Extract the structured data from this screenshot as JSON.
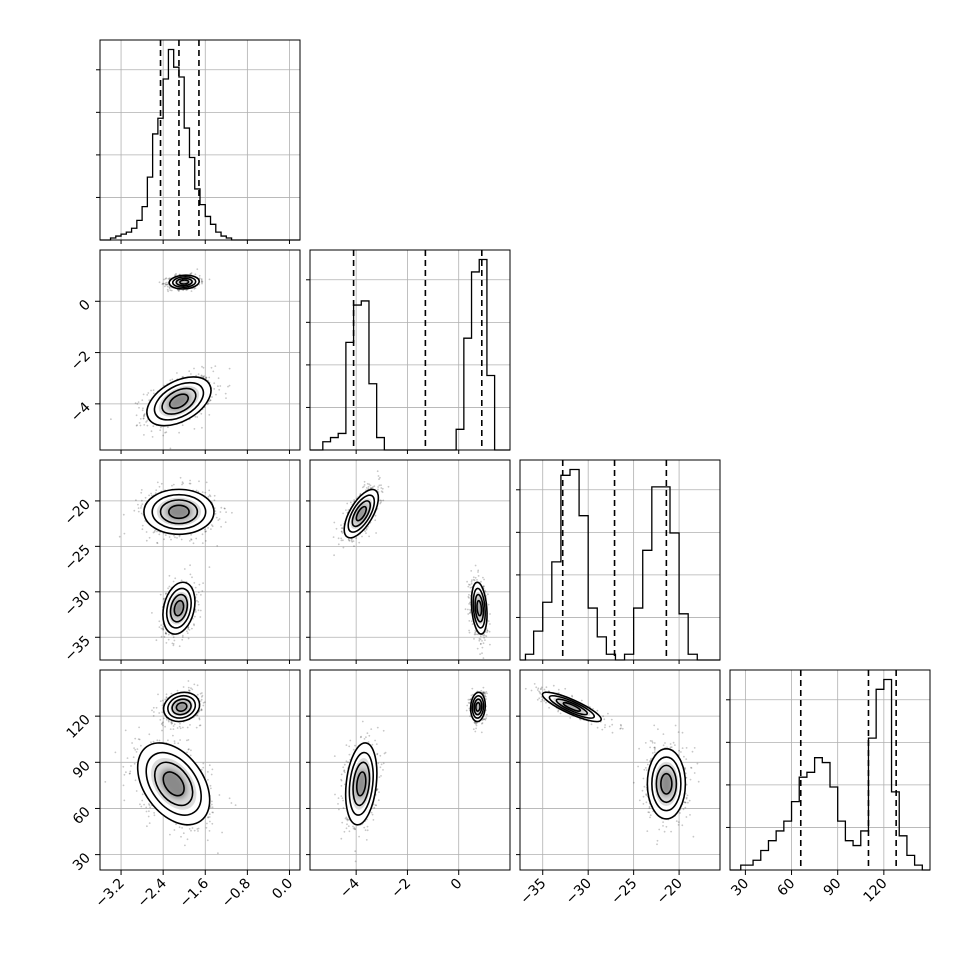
{
  "chart_data": {
    "type": "corner",
    "title": "",
    "grid": true,
    "parameters": [
      {
        "xlim": [
          -3.6,
          0.2
        ],
        "ticks": [
          -3.2,
          -2.4,
          -1.6,
          -0.8,
          0.0
        ],
        "tick_labels": [
          "−3.2",
          "−2.4",
          "−1.6",
          "−0.8",
          "0.0"
        ]
      },
      {
        "xlim": [
          -5.8,
          2.0
        ],
        "ticks": [
          -4,
          -2,
          0
        ],
        "tick_labels": [
          "−4",
          "−2",
          "0"
        ]
      },
      {
        "xlim": [
          -37.5,
          -15.5
        ],
        "ticks": [
          -35,
          -30,
          -25,
          -20
        ],
        "tick_labels": [
          "−35",
          "−30",
          "−25",
          "−20"
        ]
      },
      {
        "xlim": [
          20,
          150
        ],
        "ticks": [
          30,
          60,
          90,
          120
        ],
        "tick_labels": [
          "30",
          "60",
          "90",
          "120"
        ]
      }
    ],
    "histograms": [
      {
        "edges": [
          -3.6,
          -3.4,
          -3.3,
          -3.2,
          -3.1,
          -3.0,
          -2.9,
          -2.8,
          -2.7,
          -2.6,
          -2.5,
          -2.4,
          -2.3,
          -2.2,
          -2.1,
          -2.0,
          -1.9,
          -1.8,
          -1.7,
          -1.6,
          -1.5,
          -1.4,
          -1.3,
          -1.2,
          -1.1,
          -1.0,
          -0.9,
          0.2
        ],
        "counts": [
          0,
          1,
          2,
          3,
          4,
          6,
          10,
          17,
          32,
          54,
          62,
          82,
          97,
          88,
          83,
          57,
          42,
          26,
          18,
          12,
          8,
          4,
          2,
          1,
          0,
          0,
          0
        ],
        "quantiles": [
          -2.45,
          -2.1,
          -1.72
        ]
      },
      {
        "edges": [
          -5.8,
          -5.3,
          -5.0,
          -4.7,
          -4.4,
          -4.1,
          -3.8,
          -3.5,
          -3.2,
          -2.9,
          -2.6,
          -0.1,
          0.2,
          0.5,
          0.8,
          1.1,
          1.4,
          2.0
        ],
        "counts": [
          0,
          2,
          3,
          4,
          26,
          35,
          36,
          16,
          3,
          0,
          0,
          5,
          27,
          43,
          46,
          18,
          0
        ],
        "quantiles": [
          -4.1,
          -1.3,
          0.9
        ]
      },
      {
        "edges": [
          -37.5,
          -36.9,
          -36.0,
          -35.0,
          -34.0,
          -33.0,
          -32.0,
          -31.0,
          -30.0,
          -29.0,
          -28.0,
          -27.0,
          -26.0,
          -25.0,
          -24.0,
          -23.0,
          -22.0,
          -21.0,
          -20.0,
          -19.0,
          -18.0,
          -17.0,
          -15.5
        ],
        "counts": [
          0,
          1,
          5,
          10,
          17,
          32,
          33,
          25,
          9,
          4,
          1,
          0,
          1,
          9,
          19,
          30,
          30,
          22,
          8,
          1,
          0,
          0
        ],
        "quantiles": [
          -32.8,
          -27.1,
          -21.4
        ]
      },
      {
        "edges": [
          20,
          27,
          35,
          40,
          45,
          50,
          55,
          60,
          65,
          70,
          75,
          80,
          85,
          90,
          95,
          100,
          105,
          110,
          115,
          120,
          125,
          130,
          135,
          140,
          145,
          150
        ],
        "counts": [
          0,
          1,
          2,
          4,
          6,
          8,
          10,
          14,
          19,
          20,
          23,
          22,
          17,
          10,
          6,
          5,
          8,
          27,
          37,
          39,
          16,
          7,
          3,
          1,
          0
        ],
        "quantiles": [
          66,
          110,
          128
        ]
      }
    ],
    "clusters": [
      {
        "x": -2.1,
        "y": -3.9,
        "sx": 0.32,
        "sy": 0.5,
        "rho": 0.45,
        "n": 700
      },
      {
        "x": -2.0,
        "y": 0.75,
        "sx": 0.15,
        "sy": 0.14,
        "rho": 0.1,
        "n": 550
      },
      {
        "x": -2.1,
        "y": -21.2,
        "sx": 0.35,
        "sy": 1.3,
        "rho": 0.0,
        "n": 650
      },
      {
        "x": -2.1,
        "y": -31.8,
        "sx": 0.16,
        "sy": 1.5,
        "rho": 0.25,
        "n": 550
      },
      {
        "x": -3.8,
        "y": -21.4,
        "sx": 0.35,
        "sy": 1.4,
        "rho": 0.65,
        "n": 550
      },
      {
        "x": 0.8,
        "y": -31.8,
        "sx": 0.16,
        "sy": 1.5,
        "rho": -0.25,
        "n": 550
      },
      {
        "x": -2.2,
        "y": 76,
        "sx": 0.36,
        "sy": 14,
        "rho": -0.4,
        "n": 750
      },
      {
        "x": -2.05,
        "y": 126,
        "sx": 0.18,
        "sy": 5,
        "rho": 0.15,
        "n": 500
      },
      {
        "x": -3.8,
        "y": 76,
        "sx": 0.32,
        "sy": 14,
        "rho": 0.25,
        "n": 600
      },
      {
        "x": 0.75,
        "y": 126,
        "sx": 0.15,
        "sy": 5,
        "rho": 0.1,
        "n": 500
      },
      {
        "x": -31.8,
        "y": 126,
        "sx": 1.7,
        "sy": 5,
        "rho": -0.85,
        "n": 550
      },
      {
        "x": -21.4,
        "y": 76,
        "sx": 1.1,
        "sy": 12,
        "rho": 0.0,
        "n": 650
      }
    ],
    "cells": [
      {
        "row": 1,
        "col": 0,
        "clusters": [
          0,
          1
        ]
      },
      {
        "row": 2,
        "col": 0,
        "clusters": [
          2,
          3
        ]
      },
      {
        "row": 2,
        "col": 1,
        "clusters": [
          4,
          5
        ]
      },
      {
        "row": 3,
        "col": 0,
        "clusters": [
          6,
          7
        ]
      },
      {
        "row": 3,
        "col": 1,
        "clusters": [
          8,
          9
        ]
      },
      {
        "row": 3,
        "col": 2,
        "clusters": [
          10,
          11
        ]
      }
    ]
  }
}
